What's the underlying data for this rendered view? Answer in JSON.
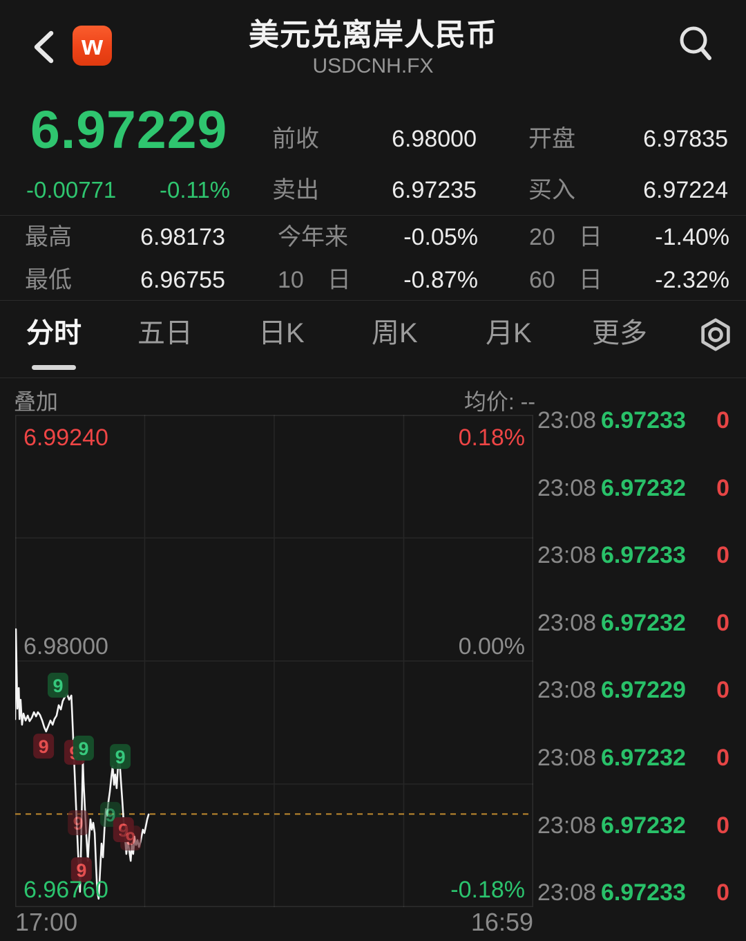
{
  "colors": {
    "up_red": "#ee4545",
    "down_green": "#2bc46e",
    "price_green": "#2fc56f",
    "dash_line": "#c08a2f",
    "logo_bg": "#ee4318"
  },
  "header": {
    "logo_text": "w",
    "title": "美元兑离岸人民币",
    "subtitle": "USDCNH.FX"
  },
  "price": {
    "last": "6.97229",
    "change": "-0.00771",
    "change_pct": "-0.11%"
  },
  "quote_stats": {
    "prev_close": {
      "label": "前收",
      "value": "6.98000"
    },
    "open": {
      "label": "开盘",
      "value": "6.97835"
    },
    "ask": {
      "label": "卖出",
      "value": "6.97235"
    },
    "bid": {
      "label": "买入",
      "value": "6.97224"
    },
    "high": {
      "label": "最高",
      "value": "6.98173"
    },
    "ytd": {
      "label": "今年来",
      "value": "-0.05%"
    },
    "d20": {
      "label": "20　日",
      "value": "-1.40%"
    },
    "low": {
      "label": "最低",
      "value": "6.96755"
    },
    "d10": {
      "label": "10　日",
      "value": "-0.87%"
    },
    "d60": {
      "label": "60　日",
      "value": "-2.32%"
    }
  },
  "tabs": {
    "items": [
      "分时",
      "五日",
      "日K",
      "周K",
      "月K",
      "更多"
    ],
    "active_index": 0
  },
  "chart_header": {
    "overlay_label": "叠加",
    "avg_text": "均价: --"
  },
  "chart_data": {
    "type": "line",
    "symbol": "USDCNH.FX",
    "x_axis": {
      "start": "17:00",
      "end": "16:59",
      "session_minutes": 1440
    },
    "y_axis": {
      "top": {
        "price": "6.99240",
        "pct": "0.18%"
      },
      "mid": {
        "price": "6.98000",
        "pct": "0.00%"
      },
      "bottom": {
        "price": "6.96760",
        "pct": "-0.18%"
      }
    },
    "range": {
      "pmax": 6.9924,
      "pmin": 6.9676
    },
    "last_price": 6.97229,
    "grid": {
      "v_fracs": [
        0.25,
        0.5,
        0.75
      ],
      "h_fracs": [
        0.25,
        0.5,
        0.75
      ]
    },
    "series_minutes": [
      0,
      2,
      6,
      10,
      12,
      15,
      19,
      23,
      29,
      35,
      40,
      46,
      52,
      58,
      63,
      69,
      75,
      81,
      86,
      92,
      98,
      104,
      109,
      115,
      121,
      127,
      132,
      138,
      144,
      150,
      156,
      159,
      163,
      167,
      171,
      175,
      179,
      180,
      182,
      184,
      186,
      188,
      190,
      194,
      198,
      202,
      205,
      209,
      213,
      217,
      221,
      225,
      228,
      232,
      236,
      240,
      244,
      248,
      252,
      255,
      259,
      263,
      267,
      271,
      275,
      278,
      282,
      286,
      290,
      294,
      298,
      301,
      305,
      309,
      313,
      317,
      321,
      324,
      328,
      332,
      336,
      340,
      344,
      348,
      351,
      355,
      359,
      363,
      367,
      371
    ],
    "series_price": [
      6.97707,
      6.9816,
      6.9776,
      6.97864,
      6.97707,
      6.97805,
      6.97679,
      6.97735,
      6.977,
      6.97725,
      6.97697,
      6.97714,
      6.97742,
      6.97721,
      6.97742,
      6.97728,
      6.977,
      6.97665,
      6.97645,
      6.97672,
      6.977,
      6.97679,
      6.97707,
      6.97725,
      6.97777,
      6.97756,
      6.97798,
      6.97819,
      6.97833,
      6.97805,
      6.97826,
      6.97707,
      6.97533,
      6.97359,
      6.97185,
      6.97028,
      6.96913,
      6.96837,
      6.96959,
      6.9715,
      6.97324,
      6.97505,
      6.97394,
      6.97254,
      6.97115,
      6.96993,
      6.97098,
      6.97202,
      6.9715,
      6.97185,
      6.97133,
      6.96959,
      6.96837,
      6.96802,
      6.96941,
      6.9708,
      6.97011,
      6.9715,
      6.97254,
      6.97219,
      6.97289,
      6.97341,
      6.97411,
      6.9747,
      6.97376,
      6.97428,
      6.97359,
      6.97481,
      6.97505,
      6.97394,
      6.97289,
      6.97202,
      6.97115,
      6.97028,
      6.97098,
      6.97045,
      6.96993,
      6.97073,
      6.97028,
      6.97115,
      6.97073,
      6.97098,
      6.97063,
      6.97087,
      6.97115,
      6.9715,
      6.97133,
      6.97167,
      6.97202,
      6.97227
    ],
    "badges": [
      {
        "minute": 119,
        "price": 6.97878,
        "color": "green",
        "label": "9",
        "faded": false
      },
      {
        "minute": 79,
        "price": 6.97571,
        "color": "red",
        "label": "9",
        "faded": false
      },
      {
        "minute": 165,
        "price": 6.9754,
        "color": "red",
        "label": "9",
        "faded": false
      },
      {
        "minute": 190,
        "price": 6.97561,
        "color": "green",
        "label": "9",
        "faded": false
      },
      {
        "minute": 292,
        "price": 6.97519,
        "color": "green",
        "label": "9",
        "faded": false
      },
      {
        "minute": 175,
        "price": 6.97185,
        "color": "red",
        "label": "9",
        "faded": true
      },
      {
        "minute": 265,
        "price": 6.97227,
        "color": "green",
        "label": "9",
        "faded": true
      },
      {
        "minute": 301,
        "price": 6.9715,
        "color": "red",
        "label": "9",
        "faded": false
      },
      {
        "minute": 321,
        "price": 6.97108,
        "color": "red",
        "label": "9",
        "faded": true
      },
      {
        "minute": 184,
        "price": 6.96948,
        "color": "red",
        "label": "9",
        "faded": false
      }
    ]
  },
  "quote_list": {
    "rows": [
      {
        "time": "23:08",
        "price": "6.97233",
        "volume": "0"
      },
      {
        "time": "23:08",
        "price": "6.97232",
        "volume": "0"
      },
      {
        "time": "23:08",
        "price": "6.97233",
        "volume": "0"
      },
      {
        "time": "23:08",
        "price": "6.97232",
        "volume": "0"
      },
      {
        "time": "23:08",
        "price": "6.97229",
        "volume": "0"
      },
      {
        "time": "23:08",
        "price": "6.97232",
        "volume": "0"
      },
      {
        "time": "23:08",
        "price": "6.97232",
        "volume": "0"
      },
      {
        "time": "23:08",
        "price": "6.97233",
        "volume": "0"
      }
    ]
  }
}
